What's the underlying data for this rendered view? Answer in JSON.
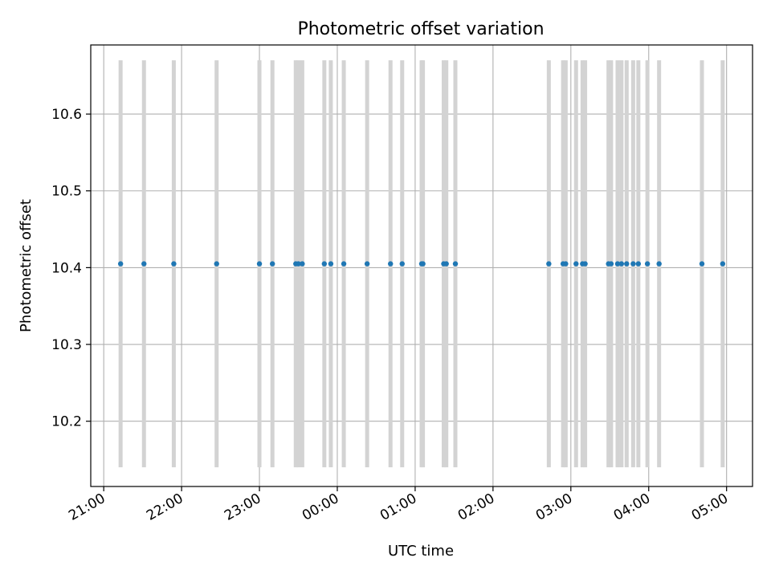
{
  "chart_data": {
    "type": "scatter",
    "title": "Photometric offset variation",
    "xlabel": "UTC time",
    "ylabel": "Photometric offset",
    "x_tick_labels": [
      "21:00",
      "22:00",
      "23:00",
      "00:00",
      "01:00",
      "02:00",
      "03:00",
      "04:00",
      "05:00"
    ],
    "x_ticks": [
      "21:00",
      "22:00",
      "23:00",
      "00:00",
      "01:00",
      "02:00",
      "03:00",
      "04:00",
      "05:00"
    ],
    "xlim": [
      "20:50",
      "05:20"
    ],
    "y_tick_labels": [
      "10.2",
      "10.3",
      "10.4",
      "10.5",
      "10.6"
    ],
    "y_ticks": [
      10.2,
      10.3,
      10.4,
      10.5,
      10.6
    ],
    "ylim": [
      10.115,
      10.69
    ],
    "grid": true,
    "point_color": "#1f77b4",
    "bar_color": "#d3d3d3",
    "bar_range": [
      10.14,
      10.67
    ],
    "points": [
      {
        "time": "21:13",
        "value": 10.405
      },
      {
        "time": "21:31",
        "value": 10.405
      },
      {
        "time": "21:54",
        "value": 10.405
      },
      {
        "time": "22:27",
        "value": 10.405
      },
      {
        "time": "23:00",
        "value": 10.405
      },
      {
        "time": "23:10",
        "value": 10.405
      },
      {
        "time": "23:28",
        "value": 10.405
      },
      {
        "time": "23:30",
        "value": 10.405
      },
      {
        "time": "23:33",
        "value": 10.405
      },
      {
        "time": "23:50",
        "value": 10.405
      },
      {
        "time": "23:55",
        "value": 10.405
      },
      {
        "time": "00:05",
        "value": 10.405
      },
      {
        "time": "00:23",
        "value": 10.405
      },
      {
        "time": "00:41",
        "value": 10.405
      },
      {
        "time": "00:50",
        "value": 10.405
      },
      {
        "time": "01:05",
        "value": 10.405
      },
      {
        "time": "01:06",
        "value": 10.405
      },
      {
        "time": "01:22",
        "value": 10.405
      },
      {
        "time": "01:24",
        "value": 10.405
      },
      {
        "time": "01:31",
        "value": 10.405
      },
      {
        "time": "02:43",
        "value": 10.405
      },
      {
        "time": "02:54",
        "value": 10.405
      },
      {
        "time": "02:56",
        "value": 10.405
      },
      {
        "time": "03:04",
        "value": 10.405
      },
      {
        "time": "03:09",
        "value": 10.405
      },
      {
        "time": "03:11",
        "value": 10.405
      },
      {
        "time": "03:29",
        "value": 10.405
      },
      {
        "time": "03:31",
        "value": 10.405
      },
      {
        "time": "03:36",
        "value": 10.405
      },
      {
        "time": "03:39",
        "value": 10.405
      },
      {
        "time": "03:43",
        "value": 10.405
      },
      {
        "time": "03:48",
        "value": 10.405
      },
      {
        "time": "03:52",
        "value": 10.405
      },
      {
        "time": "03:59",
        "value": 10.405
      },
      {
        "time": "04:08",
        "value": 10.405
      },
      {
        "time": "04:41",
        "value": 10.405
      },
      {
        "time": "04:57",
        "value": 10.405
      }
    ]
  }
}
